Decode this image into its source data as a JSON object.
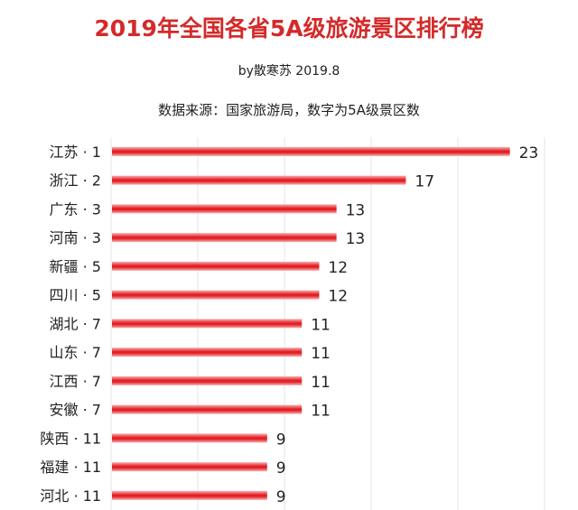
{
  "chart_data": {
    "type": "bar",
    "orientation": "horizontal",
    "title": "2019年全国各省5A级旅游景区排行榜",
    "subtitle": "by散寒苏 2019.8",
    "note": "数据来源：国家旅游局，数字为5A级景区数",
    "categories": [
      "江苏 · 1",
      "浙江 · 2",
      "广东 · 3",
      "河南 · 3",
      "新疆 · 5",
      "四川 · 5",
      "湖北 · 7",
      "山东 · 7",
      "江西 · 7",
      "安徽 · 7",
      "陕西 · 11",
      "福建 · 11",
      "河北 · 11"
    ],
    "values": [
      23,
      17,
      13,
      13,
      12,
      12,
      11,
      11,
      11,
      11,
      9,
      9,
      9
    ],
    "xlim": [
      0,
      25
    ],
    "grid": true,
    "bar_color": "#e31e24"
  }
}
